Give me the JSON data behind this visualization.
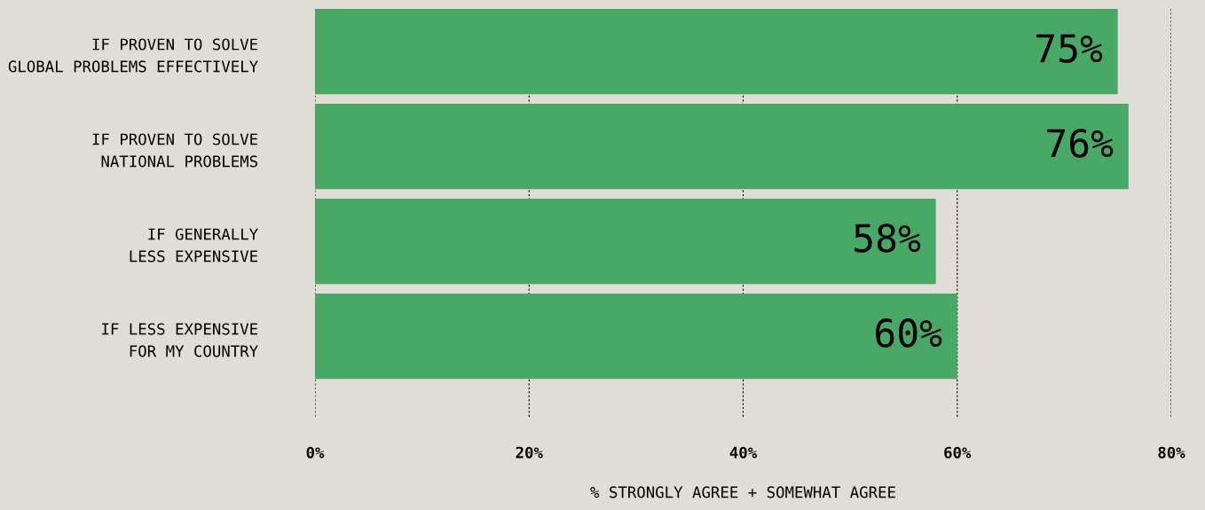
{
  "chart_data": {
    "type": "bar",
    "orientation": "horizontal",
    "categories": [
      "IF PROVEN TO SOLVE\nGLOBAL PROBLEMS EFFECTIVELY",
      "IF PROVEN TO SOLVE\nNATIONAL PROBLEMS",
      "IF GENERALLY\nLESS EXPENSIVE",
      "IF LESS EXPENSIVE\nFOR MY COUNTRY"
    ],
    "values": [
      75,
      76,
      58,
      60
    ],
    "value_labels": [
      "75%",
      "76%",
      "58%",
      "60%"
    ],
    "color": "#48a865",
    "xlabel": "% STRONGLY AGREE + SOMEWHAT AGREE",
    "xlim": [
      0,
      80
    ],
    "xticks": [
      {
        "value": 0,
        "label": "0%"
      },
      {
        "value": 20,
        "label": "20%"
      },
      {
        "value": 40,
        "label": "40%"
      },
      {
        "value": 60,
        "label": "60%"
      },
      {
        "value": 80,
        "label": "80%"
      }
    ],
    "grid": "x"
  }
}
